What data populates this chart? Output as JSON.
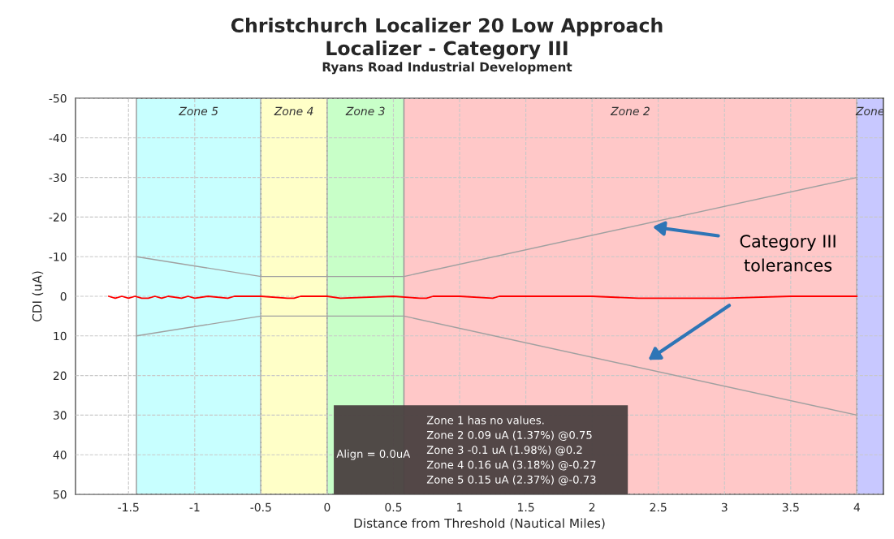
{
  "chart_data": {
    "type": "line",
    "title": "Christchurch Localizer 20 Low Approach\nLocalizer - Category III",
    "subtitle": "Ryans Road Industrial Development",
    "xlabel": "Distance from Threshold (Nautical Miles)",
    "ylabel": "CDI (uA)",
    "series": [
      {
        "x": [
          -1.44,
          -0.5,
          0.58,
          4
        ],
        "values": [
          -10,
          -5,
          -5,
          -30
        ],
        "color": "#a0a0a0"
      },
      {
        "x": [
          -1.44,
          -0.5,
          0.58,
          4
        ],
        "values": [
          10,
          5,
          5,
          30
        ],
        "color": "#a0a0a0"
      },
      {
        "x": [
          -1.65,
          -1.6,
          -1.55,
          -1.5,
          -1.45,
          -1.4,
          -1.35,
          -1.3,
          -1.25,
          -1.2,
          -1.1,
          -1.05,
          -1.0,
          -0.9,
          -0.75,
          -0.7,
          -0.5,
          -0.3,
          -0.25,
          -0.2,
          0,
          0.1,
          0.5,
          0.7,
          0.75,
          0.8,
          1.0,
          1.25,
          1.3,
          1.5,
          2.0,
          2.35,
          2.4,
          3.0,
          3.5,
          4.0
        ],
        "values": [
          0,
          0.5,
          0,
          0.5,
          0,
          0.5,
          0.5,
          0,
          0.5,
          0,
          0.5,
          0,
          0.5,
          0,
          0.5,
          0,
          0,
          0.5,
          0.5,
          0,
          0,
          0.5,
          0,
          0.5,
          0.5,
          0,
          0,
          0.5,
          0,
          0,
          0,
          0.5,
          0.5,
          0.5,
          0,
          0
        ],
        "color": "#ff0000"
      }
    ],
    "bands": [
      {
        "axis": "x",
        "from": -1.44,
        "to": -0.5,
        "label": "Zone 5",
        "color": "#c8ffff"
      },
      {
        "axis": "x",
        "from": -0.5,
        "to": 0,
        "label": "Zone 4",
        "color": "#ffffc8"
      },
      {
        "axis": "x",
        "from": 0,
        "to": 0.58,
        "label": "Zone 3",
        "color": "#c8ffc8"
      },
      {
        "axis": "x",
        "from": 0.58,
        "to": 4,
        "label": "Zone 2",
        "color": "#ffc8c8"
      },
      {
        "axis": "x",
        "from": 4,
        "to": 4.2,
        "label": "Zone",
        "color": "#c8c8ff"
      }
    ],
    "annotations": [
      "Align = 0.0uA",
      "Zone 1 has no values.\nZone 2 0.09 uA (1.37%) @0.75\nZone 3 -0.1 uA (1.98%) @0.2\nZone 4 0.16 uA (3.18%) @-0.27\nZone 5 0.15 uA (2.37%) @-0.73",
      "Category III\ntolerances"
    ],
    "xlim": [
      -1.9,
      4.2
    ],
    "ylim": [
      50,
      -50
    ],
    "xticks": [
      -1.5,
      -1,
      -0.5,
      0,
      0.5,
      1,
      1.5,
      2,
      2.5,
      3,
      3.5,
      4
    ],
    "yticks": [
      -50,
      -40,
      -30,
      -20,
      -10,
      0,
      10,
      20,
      30,
      40,
      50
    ],
    "grid": true
  }
}
